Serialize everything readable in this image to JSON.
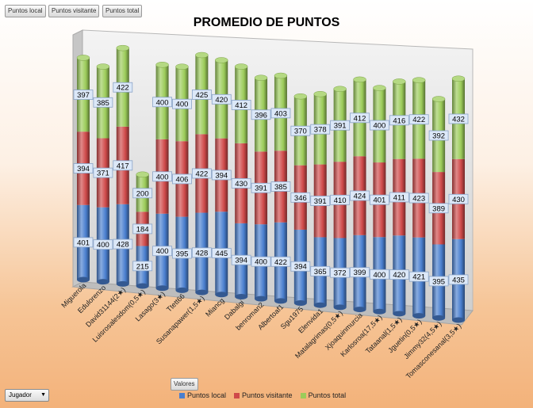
{
  "filter_buttons": [
    "Puntos local",
    "Puntos visitante",
    "Puntos total"
  ],
  "values_button": "Valores",
  "player_filter": "Jugador",
  "colors": {
    "local": "#4a7fcf",
    "visitante": "#cf4a4a",
    "total": "#9ccc5a"
  },
  "chart_data": {
    "type": "bar",
    "stacked": true,
    "title": "PROMEDIO DE PUNTOS",
    "categories": [
      "Miguerola",
      "Edulorenzo",
      "David31144(2★)",
      "Luisrosalesdom(0,5★)",
      "Lasago(3★)",
      "Ttett66",
      "Susanapawer(1,5★)",
      "Miancg",
      "Dabalgi",
      "benroman2",
      "Albertoaf1",
      "Sgu1975",
      "Elenvida1",
      "Matalagrimas(0,5★)",
      "Xjoaquinmurcia",
      "Karlosroa(17,5★)",
      "Tataanal(1,5★)",
      "Jguetin(0,5★)",
      "Jimmy32(4,5★)",
      "Tomasconesanal(3,5★)"
    ],
    "series": [
      {
        "name": "Puntos local",
        "values": [
          401,
          400,
          428,
          215,
          400,
          395,
          428,
          445,
          394,
          400,
          422,
          394,
          365,
          372,
          399,
          400,
          420,
          421,
          395,
          435
        ]
      },
      {
        "name": "Puntos visitante",
        "values": [
          394,
          371,
          417,
          184,
          400,
          406,
          422,
          394,
          430,
          391,
          385,
          346,
          391,
          410,
          424,
          401,
          411,
          423,
          389,
          430
        ]
      },
      {
        "name": "Puntos total",
        "values": [
          397,
          385,
          422,
          200,
          400,
          400,
          425,
          420,
          412,
          396,
          403,
          370,
          378,
          391,
          412,
          400,
          416,
          422,
          392,
          432
        ]
      }
    ],
    "legend": [
      "Puntos local",
      "Puntos visitante",
      "Puntos total"
    ],
    "legend_position": "bottom"
  }
}
